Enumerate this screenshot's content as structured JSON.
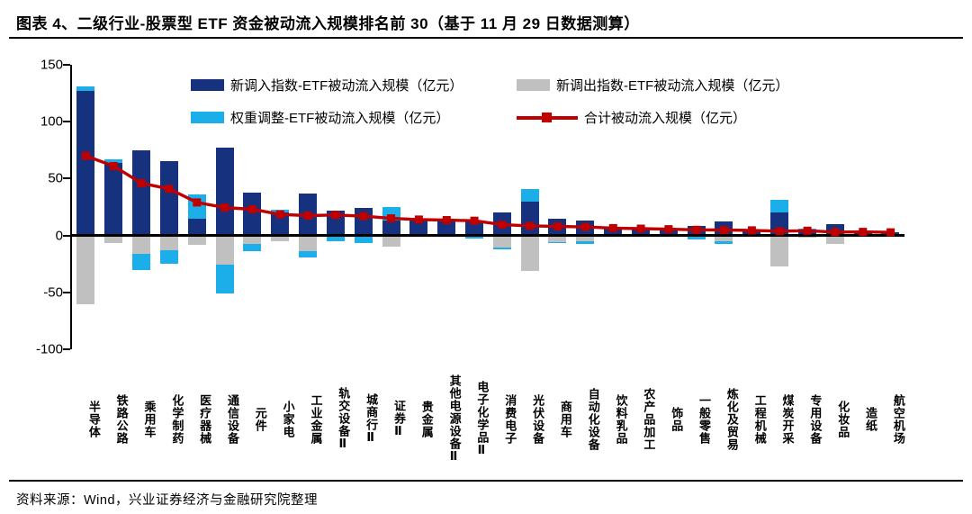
{
  "header": {
    "title": "图表 4、二级行业-股票型 ETF 资金被动流入规模排名前 30（基于 11 月 29 日数据测算）"
  },
  "footer": {
    "source": "资料来源：Wind，兴业证券经济与金融研究院整理"
  },
  "colors": {
    "new_in": "#16317d",
    "new_out": "#c0c0c0",
    "weight_adjust": "#1caee8",
    "total_line": "#c00000",
    "axis": "#000000"
  },
  "legend": {
    "items": [
      {
        "key": "new_in",
        "type": "bar",
        "color": "#16317d",
        "label": "新调入指数-ETF被动流入规模（亿元）"
      },
      {
        "key": "new_out",
        "type": "bar",
        "color": "#c0c0c0",
        "label": "新调出指数-ETF被动流入规模（亿元）"
      },
      {
        "key": "weight_adjust",
        "type": "bar",
        "color": "#1caee8",
        "label": "权重调整-ETF被动流入规模（亿元）"
      },
      {
        "key": "total",
        "type": "line",
        "color": "#c00000",
        "label": "合计被动流入规模（亿元）"
      }
    ]
  },
  "chart_data": {
    "type": "bar",
    "subtype": "stacked-bar-with-line",
    "unit": "亿元",
    "ylim": [
      -100,
      150
    ],
    "yticks": [
      150,
      100,
      50,
      0,
      -50,
      -100
    ],
    "grid": false,
    "legend_position": "top-center",
    "categories": [
      "半导体",
      "铁路公路",
      "乘用车",
      "化学制药",
      "医疗器械",
      "通信设备",
      "元件",
      "小家电",
      "工业金属",
      "轨交设备Ⅱ",
      "城商行Ⅱ",
      "证券Ⅱ",
      "贵金属",
      "其他电源设备Ⅱ",
      "电子化学品Ⅱ",
      "消费电子",
      "光伏设备",
      "商用车",
      "自动化设备",
      "饮料乳品",
      "农产品加工",
      "饰品",
      "一般零售",
      "炼化及贸易",
      "工程机械",
      "煤炭开采",
      "专用设备",
      "化妆品",
      "造纸",
      "航空机场"
    ],
    "series": [
      {
        "name": "新调入指数-ETF被动流入规模（亿元）",
        "key": "new_in",
        "type": "bar",
        "color": "#16317d",
        "values": [
          127,
          64,
          75,
          65,
          14.5,
          77,
          37.5,
          20,
          36.5,
          22,
          24,
          13,
          14,
          13,
          13,
          20.5,
          29.5,
          14.5,
          13.5,
          6,
          5.5,
          5,
          8,
          12,
          5,
          20.5,
          4,
          10,
          3.5,
          3
        ]
      },
      {
        "name": "新调出指数-ETF被动流入规模（亿元）",
        "key": "new_out",
        "type": "bar",
        "color": "#c0c0c0",
        "values": [
          -60.5,
          -6.5,
          -16,
          -13,
          -8,
          -26,
          -7.5,
          -5,
          -14,
          0,
          0,
          -10,
          0,
          0,
          0,
          -10.5,
          -31,
          -5.5,
          -5,
          0,
          0,
          0,
          -1,
          -5,
          -1.5,
          -27.5,
          -2,
          -7.5,
          0,
          0
        ]
      },
      {
        "name": "权重调整-ETF被动流入规模（亿元）",
        "key": "weight_adjust",
        "type": "bar",
        "color": "#1caee8",
        "values": [
          4,
          3,
          -14,
          -12,
          21.5,
          -25,
          -6,
          3,
          -5,
          -5,
          -7,
          12,
          -1.5,
          -1.5,
          -2.5,
          -1.5,
          11,
          -1.5,
          -2.5,
          0.5,
          0,
          0,
          -2.5,
          -2.5,
          0,
          10.5,
          2,
          0,
          0,
          0
        ]
      },
      {
        "name": "合计被动流入规模（亿元）",
        "key": "total",
        "type": "line",
        "color": "#c00000",
        "values": [
          70,
          61,
          46,
          41,
          29,
          24.5,
          23,
          18.5,
          17.5,
          18,
          17,
          15,
          14,
          13.5,
          13,
          9.5,
          8.5,
          8,
          7.5,
          6.5,
          6,
          5.5,
          5,
          4.8,
          4.5,
          3.8,
          4.2,
          3,
          3.2,
          2.8
        ]
      }
    ]
  }
}
